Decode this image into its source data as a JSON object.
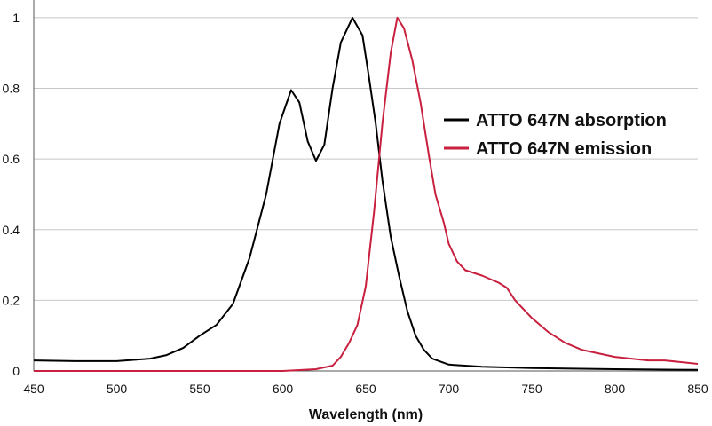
{
  "chart_data": {
    "type": "line",
    "xlabel": "Wavelength (nm)",
    "ylabel": "",
    "xlim": [
      450,
      850
    ],
    "ylim": [
      0,
      1.05
    ],
    "x_ticks": [
      "450",
      "500",
      "550",
      "600",
      "650",
      "700",
      "750",
      "800",
      "850"
    ],
    "y_ticks": [
      "0",
      "0.2",
      "0.4",
      "0.6",
      "0.8",
      "1"
    ],
    "grid": "horizontal",
    "legend_position": "right-center",
    "series": [
      {
        "name": "ATTO 647N absorption",
        "color": "#000000",
        "points": [
          [
            450,
            0.03
          ],
          [
            475,
            0.028
          ],
          [
            500,
            0.028
          ],
          [
            520,
            0.035
          ],
          [
            530,
            0.045
          ],
          [
            540,
            0.065
          ],
          [
            550,
            0.1
          ],
          [
            560,
            0.13
          ],
          [
            570,
            0.19
          ],
          [
            580,
            0.32
          ],
          [
            590,
            0.5
          ],
          [
            598,
            0.7
          ],
          [
            605,
            0.795
          ],
          [
            610,
            0.76
          ],
          [
            615,
            0.65
          ],
          [
            620,
            0.595
          ],
          [
            625,
            0.64
          ],
          [
            630,
            0.8
          ],
          [
            635,
            0.93
          ],
          [
            642,
            1.0
          ],
          [
            648,
            0.95
          ],
          [
            652,
            0.83
          ],
          [
            656,
            0.7
          ],
          [
            660,
            0.54
          ],
          [
            665,
            0.38
          ],
          [
            670,
            0.27
          ],
          [
            675,
            0.17
          ],
          [
            680,
            0.1
          ],
          [
            685,
            0.06
          ],
          [
            690,
            0.035
          ],
          [
            700,
            0.018
          ],
          [
            720,
            0.012
          ],
          [
            750,
            0.008
          ],
          [
            800,
            0.005
          ],
          [
            850,
            0.003
          ]
        ]
      },
      {
        "name": "ATTO 647N emission",
        "color": "#c8203e",
        "points": [
          [
            450,
            0.0
          ],
          [
            600,
            0.0
          ],
          [
            620,
            0.005
          ],
          [
            630,
            0.015
          ],
          [
            635,
            0.04
          ],
          [
            640,
            0.08
          ],
          [
            645,
            0.13
          ],
          [
            650,
            0.24
          ],
          [
            655,
            0.45
          ],
          [
            660,
            0.7
          ],
          [
            665,
            0.9
          ],
          [
            669,
            1.0
          ],
          [
            673,
            0.97
          ],
          [
            678,
            0.88
          ],
          [
            683,
            0.76
          ],
          [
            688,
            0.61
          ],
          [
            692,
            0.5
          ],
          [
            697,
            0.42
          ],
          [
            700,
            0.36
          ],
          [
            705,
            0.31
          ],
          [
            710,
            0.285
          ],
          [
            720,
            0.27
          ],
          [
            730,
            0.25
          ],
          [
            735,
            0.235
          ],
          [
            740,
            0.2
          ],
          [
            750,
            0.15
          ],
          [
            760,
            0.11
          ],
          [
            770,
            0.08
          ],
          [
            780,
            0.06
          ],
          [
            790,
            0.05
          ],
          [
            800,
            0.04
          ],
          [
            810,
            0.035
          ],
          [
            820,
            0.03
          ],
          [
            830,
            0.03
          ],
          [
            840,
            0.025
          ],
          [
            850,
            0.02
          ]
        ]
      }
    ]
  }
}
